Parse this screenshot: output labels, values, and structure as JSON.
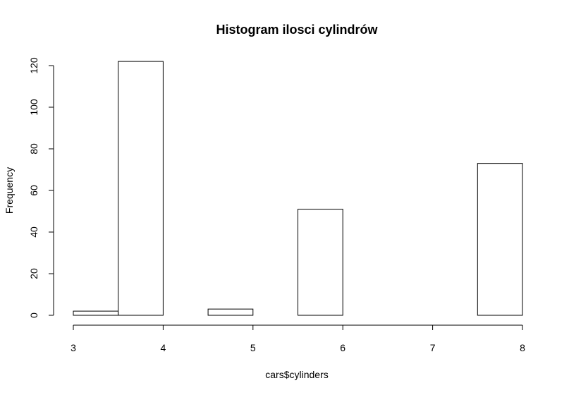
{
  "chart_data": {
    "type": "bar",
    "title": "Histogram ilosci cylindrów",
    "xlabel": "cars$cylinders",
    "ylabel": "Frequency",
    "bins": [
      {
        "start": 3.0,
        "end": 3.5,
        "count": 2
      },
      {
        "start": 3.5,
        "end": 4.0,
        "count": 122
      },
      {
        "start": 4.0,
        "end": 4.5,
        "count": 0
      },
      {
        "start": 4.5,
        "end": 5.0,
        "count": 3
      },
      {
        "start": 5.0,
        "end": 5.5,
        "count": 0
      },
      {
        "start": 5.5,
        "end": 6.0,
        "count": 51
      },
      {
        "start": 6.0,
        "end": 6.5,
        "count": 0
      },
      {
        "start": 6.5,
        "end": 7.0,
        "count": 0
      },
      {
        "start": 7.0,
        "end": 7.5,
        "count": 0
      },
      {
        "start": 7.5,
        "end": 8.0,
        "count": 73
      }
    ],
    "xlim": [
      3,
      8
    ],
    "ylim": [
      0,
      122
    ],
    "x_ticks": [
      3,
      4,
      5,
      6,
      7,
      8
    ],
    "y_ticks": [
      0,
      20,
      40,
      60,
      80,
      100,
      120
    ],
    "grid": false,
    "legend": "none",
    "bar_fill": "#ffffff",
    "bar_stroke": "#000000"
  }
}
